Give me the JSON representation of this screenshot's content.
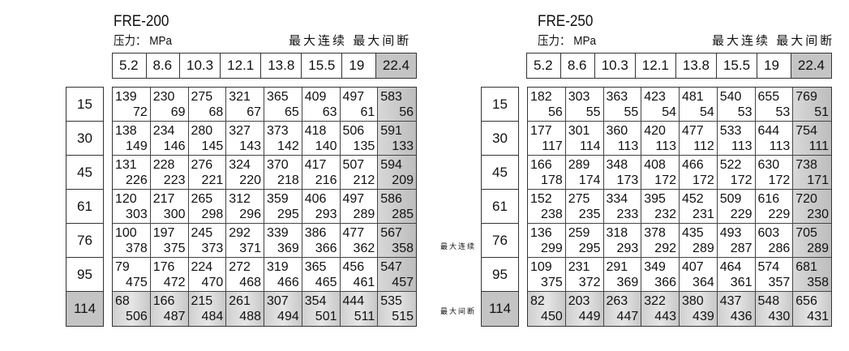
{
  "unit_label": "压力： MPa",
  "legend": {
    "continuous": "最大连续",
    "intermittent": "最大间断"
  },
  "pressures": [
    "5.2",
    "8.6",
    "10.3",
    "12.1",
    "13.8",
    "15.5",
    "19",
    "22.4"
  ],
  "rows": [
    "15",
    "30",
    "45",
    "61",
    "76",
    "95",
    "114"
  ],
  "tables": [
    {
      "title": "FRE-200",
      "cells": [
        [
          [
            "139",
            "72"
          ],
          [
            "230",
            "69"
          ],
          [
            "275",
            "68"
          ],
          [
            "321",
            "67"
          ],
          [
            "365",
            "65"
          ],
          [
            "409",
            "63"
          ],
          [
            "497",
            "61"
          ],
          [
            "583",
            "56"
          ]
        ],
        [
          [
            "138",
            "149"
          ],
          [
            "234",
            "146"
          ],
          [
            "280",
            "145"
          ],
          [
            "327",
            "143"
          ],
          [
            "373",
            "142"
          ],
          [
            "418",
            "140"
          ],
          [
            "506",
            "135"
          ],
          [
            "591",
            "133"
          ]
        ],
        [
          [
            "131",
            "226"
          ],
          [
            "228",
            "223"
          ],
          [
            "276",
            "221"
          ],
          [
            "324",
            "220"
          ],
          [
            "370",
            "218"
          ],
          [
            "417",
            "216"
          ],
          [
            "507",
            "212"
          ],
          [
            "594",
            "209"
          ]
        ],
        [
          [
            "120",
            "303"
          ],
          [
            "217",
            "300"
          ],
          [
            "265",
            "298"
          ],
          [
            "312",
            "296"
          ],
          [
            "359",
            "295"
          ],
          [
            "406",
            "293"
          ],
          [
            "497",
            "289"
          ],
          [
            "586",
            "285"
          ]
        ],
        [
          [
            "100",
            "378"
          ],
          [
            "197",
            "375"
          ],
          [
            "245",
            "373"
          ],
          [
            "292",
            "371"
          ],
          [
            "339",
            "369"
          ],
          [
            "386",
            "366"
          ],
          [
            "477",
            "362"
          ],
          [
            "567",
            "358"
          ]
        ],
        [
          [
            "79",
            "475"
          ],
          [
            "176",
            "472"
          ],
          [
            "224",
            "470"
          ],
          [
            "272",
            "468"
          ],
          [
            "319",
            "466"
          ],
          [
            "365",
            "465"
          ],
          [
            "456",
            "461"
          ],
          [
            "547",
            "457"
          ]
        ],
        [
          [
            "68",
            "506"
          ],
          [
            "166",
            "487"
          ],
          [
            "215",
            "484"
          ],
          [
            "261",
            "488"
          ],
          [
            "307",
            "494"
          ],
          [
            "354",
            "501"
          ],
          [
            "444",
            "511"
          ],
          [
            "535",
            "515"
          ]
        ]
      ]
    },
    {
      "title": "FRE-250",
      "cells": [
        [
          [
            "182",
            "56"
          ],
          [
            "303",
            "55"
          ],
          [
            "363",
            "55"
          ],
          [
            "423",
            "54"
          ],
          [
            "481",
            "54"
          ],
          [
            "540",
            "53"
          ],
          [
            "655",
            "53"
          ],
          [
            "769",
            "51"
          ]
        ],
        [
          [
            "177",
            "117"
          ],
          [
            "301",
            "114"
          ],
          [
            "360",
            "113"
          ],
          [
            "420",
            "113"
          ],
          [
            "477",
            "112"
          ],
          [
            "533",
            "113"
          ],
          [
            "644",
            "113"
          ],
          [
            "754",
            "111"
          ]
        ],
        [
          [
            "166",
            "178"
          ],
          [
            "289",
            "174"
          ],
          [
            "348",
            "173"
          ],
          [
            "408",
            "172"
          ],
          [
            "466",
            "172"
          ],
          [
            "522",
            "172"
          ],
          [
            "630",
            "172"
          ],
          [
            "738",
            "171"
          ]
        ],
        [
          [
            "152",
            "238"
          ],
          [
            "275",
            "235"
          ],
          [
            "334",
            "233"
          ],
          [
            "395",
            "232"
          ],
          [
            "452",
            "231"
          ],
          [
            "509",
            "229"
          ],
          [
            "616",
            "229"
          ],
          [
            "720",
            "230"
          ]
        ],
        [
          [
            "136",
            "299"
          ],
          [
            "259",
            "295"
          ],
          [
            "318",
            "293"
          ],
          [
            "378",
            "292"
          ],
          [
            "435",
            "289"
          ],
          [
            "493",
            "287"
          ],
          [
            "603",
            "286"
          ],
          [
            "705",
            "289"
          ]
        ],
        [
          [
            "109",
            "375"
          ],
          [
            "231",
            "372"
          ],
          [
            "291",
            "369"
          ],
          [
            "349",
            "366"
          ],
          [
            "407",
            "364"
          ],
          [
            "464",
            "361"
          ],
          [
            "574",
            "357"
          ],
          [
            "681",
            "358"
          ]
        ],
        [
          [
            "82",
            "450"
          ],
          [
            "203",
            "449"
          ],
          [
            "263",
            "447"
          ],
          [
            "322",
            "443"
          ],
          [
            "380",
            "439"
          ],
          [
            "437",
            "436"
          ],
          [
            "548",
            "430"
          ],
          [
            "656",
            "431"
          ]
        ]
      ]
    }
  ]
}
